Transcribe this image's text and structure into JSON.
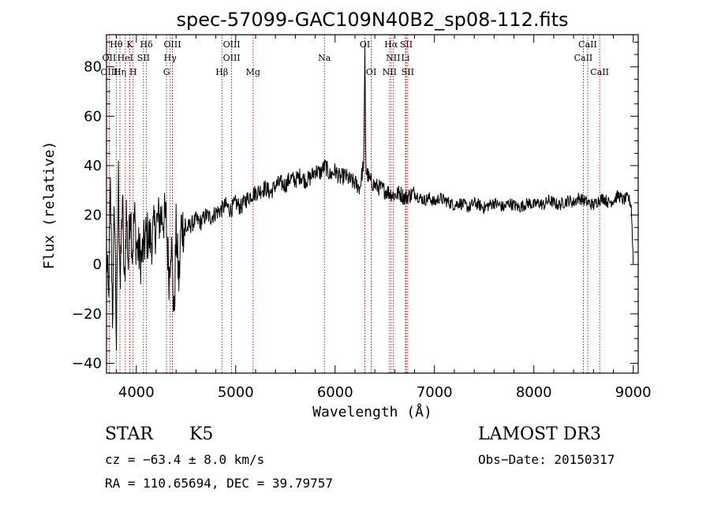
{
  "chart_data": {
    "type": "line",
    "title": "spec-57099-GAC109N40B2_sp08-112.fits",
    "xlabel": "Wavelength (Å)",
    "ylabel": "Flux (relative)",
    "xlim": [
      3700,
      9050
    ],
    "ylim": [
      -44,
      93
    ],
    "x_ticks": [
      4000,
      5000,
      6000,
      7000,
      8000,
      9000
    ],
    "y_ticks": [
      -40,
      -20,
      0,
      20,
      40,
      60,
      80
    ],
    "x_tick_labels": [
      "4000",
      "5000",
      "6000",
      "7000",
      "8000",
      "9000"
    ],
    "y_tick_labels": [
      "−40",
      "−20",
      "0",
      "20",
      "40",
      "60",
      "80"
    ],
    "series": [
      {
        "name": "flux",
        "x": [
          3700,
          3720,
          3740,
          3760,
          3780,
          3800,
          3820,
          3840,
          3860,
          3880,
          3900,
          3920,
          3940,
          3960,
          3980,
          4000,
          4050,
          4100,
          4150,
          4200,
          4250,
          4300,
          4330,
          4350,
          4380,
          4400,
          4430,
          4450,
          4500,
          4550,
          4600,
          4650,
          4700,
          4750,
          4800,
          4850,
          4900,
          4950,
          5000,
          5050,
          5100,
          5150,
          5200,
          5250,
          5300,
          5350,
          5400,
          5450,
          5500,
          5550,
          5600,
          5650,
          5700,
          5750,
          5800,
          5850,
          5900,
          5950,
          6000,
          6050,
          6100,
          6150,
          6200,
          6250,
          6290,
          6300,
          6310,
          6350,
          6400,
          6450,
          6500,
          6550,
          6600,
          6650,
          6700,
          6750,
          6800,
          6850,
          6900,
          6950,
          7000,
          7050,
          7100,
          7150,
          7200,
          7250,
          7300,
          7350,
          7400,
          7450,
          7500,
          7550,
          7600,
          7650,
          7700,
          7750,
          7800,
          7850,
          7900,
          7950,
          8000,
          8050,
          8100,
          8150,
          8200,
          8250,
          8300,
          8350,
          8400,
          8450,
          8500,
          8550,
          8600,
          8650,
          8700,
          8750,
          8800,
          8850,
          8900,
          8950,
          8980,
          9000
        ],
        "values": [
          5,
          -15,
          30,
          -20,
          25,
          -32,
          35,
          -10,
          28,
          -12,
          22,
          0,
          26,
          5,
          20,
          8,
          2,
          12,
          10,
          16,
          20,
          18,
          -5,
          12,
          -22,
          14,
          -8,
          16,
          14,
          16,
          18,
          17,
          20,
          19,
          21,
          22,
          24,
          22,
          25,
          23,
          26,
          28,
          29,
          30,
          31,
          29,
          32,
          33,
          32,
          35,
          34,
          36,
          34,
          35,
          38,
          37,
          40,
          36,
          38,
          35,
          36,
          34,
          33,
          31,
          42,
          87,
          38,
          34,
          32,
          31,
          30,
          29,
          28,
          29,
          27,
          28,
          29,
          27,
          26,
          27,
          25,
          27,
          26,
          25,
          24,
          25,
          24,
          23,
          25,
          24,
          23,
          24,
          25,
          24,
          23,
          25,
          24,
          23,
          24,
          25,
          24,
          25,
          24,
          26,
          25,
          24,
          25,
          26,
          25,
          27,
          26,
          25,
          24,
          26,
          27,
          25,
          26,
          28,
          26,
          27,
          24,
          1
        ]
      }
    ],
    "line_markers": [
      {
        "label": "Hθ",
        "wl": 3798,
        "row": 0
      },
      {
        "label": "K",
        "wl": 3934,
        "row": 0
      },
      {
        "label": "Hδ",
        "wl": 4102,
        "row": 0
      },
      {
        "label": "OIII",
        "wl": 4363,
        "row": 0
      },
      {
        "label": "OIII",
        "wl": 4959,
        "row": 0
      },
      {
        "label": "OI",
        "wl": 6300,
        "row": 0
      },
      {
        "label": "Hα",
        "wl": 6563,
        "row": 0
      },
      {
        "label": "SII",
        "wl": 6716,
        "row": 0
      },
      {
        "label": "CaII",
        "wl": 8542,
        "row": 0
      },
      {
        "label": "OII",
        "wl": 3727,
        "row": 1
      },
      {
        "label": "HeI",
        "wl": 3889,
        "row": 1
      },
      {
        "label": "SII",
        "wl": 4072,
        "row": 1
      },
      {
        "label": "Hγ",
        "wl": 4341,
        "row": 1
      },
      {
        "label": "OIII",
        "wl": 4959,
        "row": 1
      },
      {
        "label": "Na",
        "wl": 5893,
        "row": 1
      },
      {
        "label": "NII",
        "wl": 6584,
        "row": 1
      },
      {
        "label": "Li",
        "wl": 6708,
        "row": 1
      },
      {
        "label": "CaII",
        "wl": 8498,
        "row": 1
      },
      {
        "label": "OIII",
        "wl": 3727,
        "row": 2
      },
      {
        "label": "Hη",
        "wl": 3835,
        "row": 2
      },
      {
        "label": "H",
        "wl": 3968,
        "row": 2
      },
      {
        "label": "G",
        "wl": 4304,
        "row": 2
      },
      {
        "label": "Hβ",
        "wl": 4861,
        "row": 2
      },
      {
        "label": "Mg",
        "wl": 5175,
        "row": 2
      },
      {
        "label": "OI",
        "wl": 6364,
        "row": 2
      },
      {
        "label": "NII",
        "wl": 6548,
        "row": 2
      },
      {
        "label": "SII",
        "wl": 6731,
        "row": 2
      },
      {
        "label": "CaII",
        "wl": 8662,
        "row": 2
      }
    ]
  },
  "info": {
    "class_label": "STAR",
    "subclass": "K5",
    "survey": "LAMOST DR3",
    "cz": "cz = −63.4 ± 8.0 km/s",
    "obs_date": "Obs−Date: 20150317",
    "coords": "RA = 110.65694, DEC =  39.79757"
  },
  "colors": {
    "spectrum": "#000000",
    "marker_lines": "#c00000",
    "axes": "#000000"
  }
}
